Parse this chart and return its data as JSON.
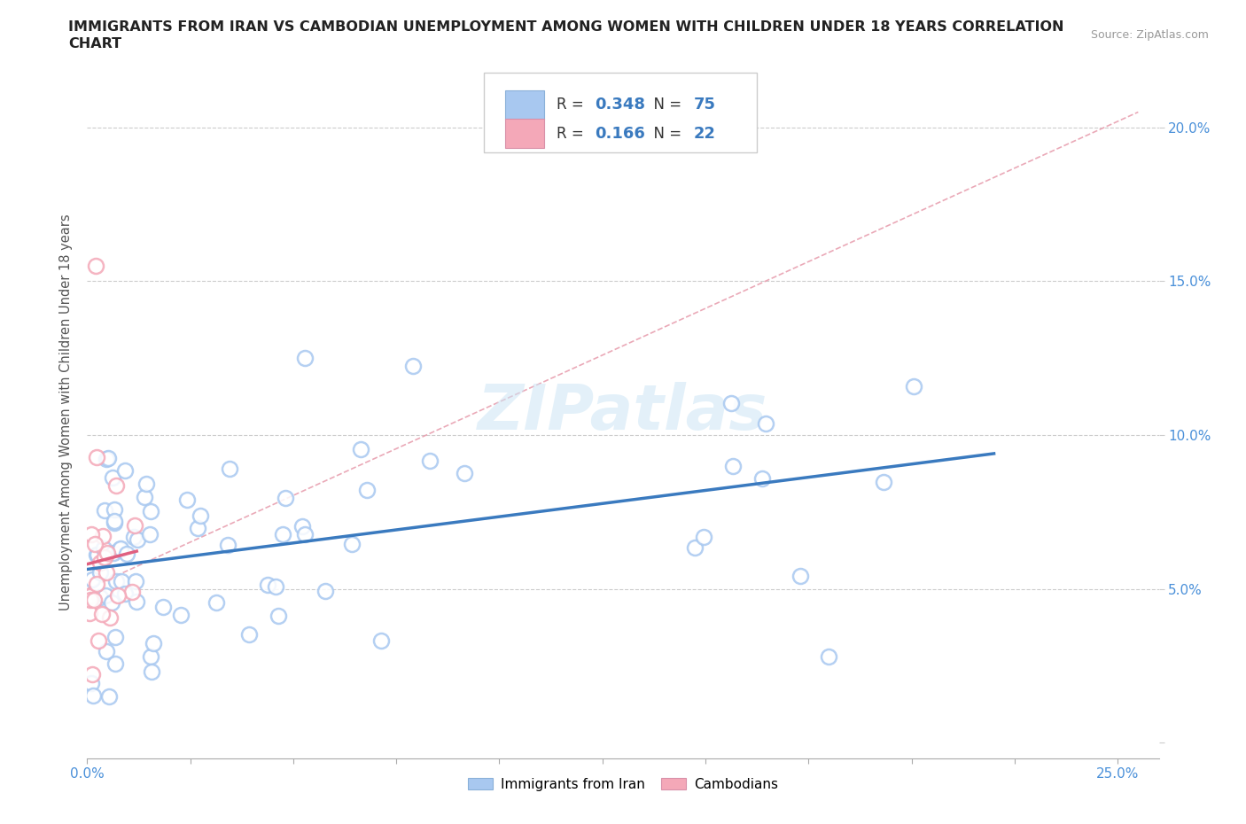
{
  "title_line1": "IMMIGRANTS FROM IRAN VS CAMBODIAN UNEMPLOYMENT AMONG WOMEN WITH CHILDREN UNDER 18 YEARS CORRELATION",
  "title_line2": "CHART",
  "source": "Source: ZipAtlas.com",
  "ylabel": "Unemployment Among Women with Children Under 18 years",
  "xlim": [
    0.0,
    0.26
  ],
  "ylim": [
    -0.005,
    0.22
  ],
  "x_ticks": [
    0.0,
    0.025,
    0.05,
    0.075,
    0.1,
    0.125,
    0.15,
    0.175,
    0.2,
    0.225,
    0.25
  ],
  "x_tick_labels": [
    "0.0%",
    "",
    "",
    "",
    "",
    "",
    "",
    "",
    "",
    "",
    "25.0%"
  ],
  "y_ticks": [
    0.0,
    0.05,
    0.1,
    0.15,
    0.2
  ],
  "y_tick_labels": [
    "",
    "5.0%",
    "10.0%",
    "15.0%",
    "20.0%"
  ],
  "iran_R": 0.348,
  "iran_N": 75,
  "camb_R": 0.166,
  "camb_N": 22,
  "iran_color": "#a8c8f0",
  "camb_color": "#f4a8b8",
  "iran_line_color": "#3a7abf",
  "camb_line_color": "#e06080",
  "pink_dash_color": "#e8a0b0",
  "background_color": "#ffffff",
  "watermark": "ZIPatlas",
  "tick_color": "#4a90d9",
  "title_color": "#222222",
  "ylabel_color": "#555555"
}
